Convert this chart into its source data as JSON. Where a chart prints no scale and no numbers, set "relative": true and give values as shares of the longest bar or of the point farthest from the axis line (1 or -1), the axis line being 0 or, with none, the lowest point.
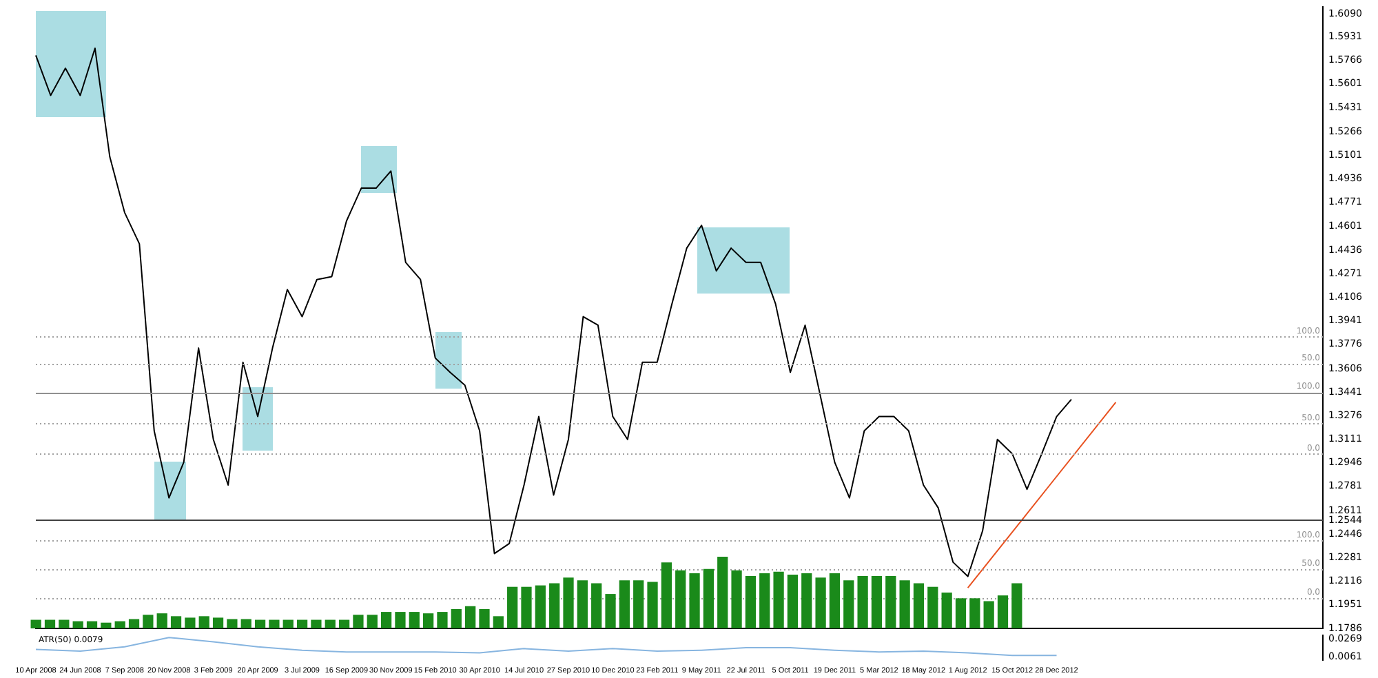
{
  "chart_data": [
    {
      "type": "line",
      "grid": false,
      "categories": [
        "10 Apr 2008",
        null,
        null,
        "24 Jun 2008",
        null,
        null,
        "7 Sep 2008",
        null,
        null,
        "20 Nov 2008",
        null,
        null,
        "3 Feb 2009",
        null,
        null,
        "20 Apr 2009",
        null,
        null,
        "3 Jul 2009",
        null,
        null,
        "16 Sep 2009",
        null,
        null,
        "30 Nov 2009",
        null,
        null,
        "15 Feb 2010",
        null,
        null,
        "30 Apr 2010",
        null,
        null,
        "14 Jul 2010",
        null,
        null,
        "27 Sep 2010",
        null,
        null,
        "10 Dec 2010",
        null,
        null,
        "23 Feb 2011",
        null,
        null,
        "9 May 2011",
        null,
        null,
        "22 Jul 2011",
        null,
        null,
        "5 Oct 2011",
        null,
        null,
        "19 Dec 2011",
        null,
        null,
        "5 Mar 2012",
        null,
        null,
        "18 May 2012",
        null,
        null,
        "1 Aug 2012",
        null,
        null,
        "15 Oct 2012",
        null,
        null,
        "28 Dec 2012",
        null,
        null,
        null,
        null,
        null,
        null,
        null,
        null,
        null,
        null,
        null,
        null,
        null,
        null,
        null,
        null,
        null,
        null
      ],
      "ylim": [
        1.1786,
        1.6138
      ],
      "yticks": [
        {
          "value": 1.1786,
          "label": "1.1786"
        },
        {
          "value": 1.1951,
          "label": "1.1951"
        },
        {
          "value": 1.2116,
          "label": "1.2116"
        },
        {
          "value": 1.2281,
          "label": "1.2281"
        },
        {
          "value": 1.2446,
          "label": "1.2446"
        },
        {
          "value": 1.2544,
          "label": "1.2544"
        },
        {
          "value": 1.2611,
          "label": "1.2611"
        },
        {
          "value": 1.2781,
          "label": "1.2781"
        },
        {
          "value": 1.2946,
          "label": "1.2946"
        },
        {
          "value": 1.3111,
          "label": "1.3111"
        },
        {
          "value": 1.3276,
          "label": "1.3276"
        },
        {
          "value": 1.3441,
          "label": "1.3441"
        },
        {
          "value": 1.3606,
          "label": "1.3606"
        },
        {
          "value": 1.3776,
          "label": "1.3776"
        },
        {
          "value": 1.3941,
          "label": "1.3941"
        },
        {
          "value": 1.4106,
          "label": "1.4106"
        },
        {
          "value": 1.4271,
          "label": "1.4271"
        },
        {
          "value": 1.4436,
          "label": "1.4436"
        },
        {
          "value": 1.4601,
          "label": "1.4601"
        },
        {
          "value": 1.4771,
          "label": "1.4771"
        },
        {
          "value": 1.4936,
          "label": "1.4936"
        },
        {
          "value": 1.5101,
          "label": "1.5101"
        },
        {
          "value": 1.5266,
          "label": "1.5266"
        },
        {
          "value": 1.5431,
          "label": "1.5431"
        },
        {
          "value": 1.5601,
          "label": "1.5601"
        },
        {
          "value": 1.5766,
          "label": "1.5766"
        },
        {
          "value": 1.5931,
          "label": "1.5931"
        },
        {
          "value": 1.609,
          "label": "1.6090"
        }
      ],
      "series": [
        {
          "type": "line",
          "color": "#000000",
          "values": [
            1.58,
            1.552,
            1.571,
            1.552,
            1.585,
            1.509,
            1.47,
            1.448,
            1.317,
            1.27,
            1.295,
            1.375,
            1.311,
            1.279,
            1.365,
            1.327,
            1.375,
            1.416,
            1.397,
            1.423,
            1.425,
            1.464,
            1.487,
            1.487,
            1.499,
            1.435,
            1.423,
            1.368,
            1.358,
            1.349,
            1.317,
            1.231,
            1.238,
            1.279,
            1.327,
            1.272,
            1.311,
            1.397,
            1.391,
            1.327,
            1.311,
            1.365,
            1.365,
            1.406,
            1.445,
            1.461,
            1.429,
            1.445,
            1.435,
            1.435,
            1.406,
            1.358,
            1.391,
            1.343,
            1.295,
            1.27,
            1.317,
            1.327,
            1.327,
            1.317,
            1.279,
            1.263,
            1.225,
            1.215,
            1.247,
            1.311,
            1.301,
            1.276,
            1.301,
            1.327,
            1.339,
            null,
            null,
            null,
            null,
            null,
            null,
            null,
            null,
            null,
            null,
            null,
            null,
            null,
            null,
            null,
            null,
            null
          ]
        },
        {
          "type": "line",
          "color": "#e8501e",
          "values": [
            null,
            null,
            null,
            null,
            null,
            null,
            null,
            null,
            null,
            null,
            null,
            null,
            null,
            null,
            null,
            null,
            null,
            null,
            null,
            null,
            null,
            null,
            null,
            null,
            null,
            null,
            null,
            null,
            null,
            null,
            null,
            null,
            null,
            null,
            null,
            null,
            null,
            null,
            null,
            null,
            null,
            null,
            null,
            null,
            null,
            null,
            null,
            null,
            null,
            null,
            null,
            null,
            null,
            null,
            null,
            null,
            null,
            null,
            null,
            null,
            null,
            null,
            null,
            1.207,
            null,
            null,
            null,
            null,
            null,
            null,
            null,
            null,
            null,
            1.337,
            null,
            null,
            null,
            null,
            null,
            null,
            null,
            null,
            null,
            null,
            null,
            null,
            null,
            null
          ]
        }
      ],
      "ref_lines": [
        {
          "axis": "y",
          "value": 1.383,
          "color": "#a0a0a0",
          "line_style": "dotted"
        },
        {
          "axis": "y",
          "value": 1.364,
          "color": "#a0a0a0",
          "line_style": "dotted"
        },
        {
          "axis": "y",
          "value": 1.3441,
          "color": "#909090",
          "line_style": "solid"
        },
        {
          "axis": "y",
          "value": 1.322,
          "color": "#a0a0a0",
          "line_style": "dotted"
        },
        {
          "axis": "y",
          "value": 1.301,
          "color": "#a0a0a0",
          "line_style": "dotted"
        },
        {
          "axis": "y",
          "value": 1.2544,
          "color": "#404040",
          "line_style": "solid"
        },
        {
          "axis": "y",
          "value": 1.24,
          "color": "#a0a0a0",
          "line_style": "dotted"
        },
        {
          "axis": "y",
          "value": 1.22,
          "color": "#a0a0a0",
          "line_style": "dotted"
        },
        {
          "axis": "y",
          "value": 1.2,
          "color": "#a0a0a0",
          "line_style": "dotted"
        }
      ],
      "annotations": [
        {
          "text": "100.0",
          "y": 1.383
        },
        {
          "text": "50.0",
          "y": 1.364
        },
        {
          "text": "100.0",
          "y": 1.3441
        },
        {
          "text": "50.0",
          "y": 1.322
        },
        {
          "text": "0.0",
          "y": 1.301
        },
        {
          "text": "100.0",
          "y": 1.24
        },
        {
          "text": "50.0",
          "y": 1.22
        },
        {
          "text": "0.0",
          "y": 1.2
        }
      ]
    },
    {
      "type": "bar",
      "relative": true,
      "tick_labels": false,
      "grid": false,
      "categories": [
        null,
        null,
        null,
        null,
        null,
        null,
        null,
        null,
        null,
        null,
        null,
        null,
        null,
        null,
        null,
        null,
        null,
        null,
        null,
        null,
        null,
        null,
        null,
        null,
        null,
        null,
        null,
        null,
        null,
        null,
        null,
        null,
        null,
        null,
        null,
        null,
        null,
        null,
        null,
        null,
        null,
        null,
        null,
        null,
        null,
        null,
        null,
        null,
        null,
        null,
        null,
        null,
        null,
        null,
        null,
        null,
        null,
        null,
        null,
        null,
        null,
        null,
        null,
        null,
        null,
        null,
        null,
        null,
        null,
        null,
        null
      ],
      "color": "#1a8a1a",
      "values": [
        0.12,
        0.12,
        0.12,
        0.1,
        0.1,
        0.08,
        0.1,
        0.13,
        0.19,
        0.21,
        0.17,
        0.15,
        0.17,
        0.15,
        0.13,
        0.13,
        0.12,
        0.12,
        0.12,
        0.12,
        0.12,
        0.12,
        0.12,
        0.19,
        0.19,
        0.23,
        0.23,
        0.23,
        0.21,
        0.23,
        0.27,
        0.31,
        0.27,
        0.17,
        0.58,
        0.58,
        0.6,
        0.63,
        0.71,
        0.67,
        0.63,
        0.48,
        0.67,
        0.67,
        0.65,
        0.92,
        0.81,
        0.77,
        0.83,
        1,
        0.81,
        0.73,
        0.77,
        0.79,
        0.75,
        0.77,
        0.71,
        0.77,
        0.67,
        0.73,
        0.73,
        0.73,
        0.67,
        0.63,
        0.58,
        0.5,
        0.42,
        0.42,
        0.38,
        0.46,
        0.63
      ]
    },
    {
      "type": "line",
      "grid": false,
      "tick_labels": "y",
      "annotations": [
        "ATR(50) 0.0079"
      ],
      "categories": [
        null,
        null,
        null,
        null,
        null,
        null,
        null,
        null,
        null,
        null,
        null,
        null,
        null,
        null,
        null,
        null,
        null,
        null,
        null,
        null,
        null,
        null,
        null,
        null,
        null,
        null,
        null,
        null,
        null,
        null,
        null,
        null,
        null,
        null,
        null,
        null,
        null,
        null,
        null,
        null,
        null,
        null,
        null,
        null,
        null,
        null,
        null,
        null,
        null,
        null,
        null,
        null,
        null,
        null,
        null,
        null,
        null,
        null,
        null,
        null,
        null,
        null,
        null,
        null,
        null,
        null,
        null,
        null,
        null,
        null,
        null,
        null,
        null,
        null,
        null,
        null,
        null,
        null,
        null,
        null,
        null,
        null,
        null,
        null,
        null,
        null,
        null,
        null
      ],
      "ylim": [
        0.0028,
        0.0313
      ],
      "yticks": [
        0.0061,
        0.0269
      ],
      "color": "#87b5e0",
      "values": [
        0.015,
        null,
        null,
        0.013,
        null,
        null,
        0.018,
        null,
        null,
        0.029,
        null,
        null,
        0.024,
        null,
        null,
        0.018,
        null,
        null,
        0.014,
        null,
        null,
        0.012,
        null,
        null,
        0.012,
        null,
        null,
        0.012,
        null,
        null,
        0.011,
        null,
        null,
        0.016,
        null,
        null,
        0.013,
        null,
        null,
        0.016,
        null,
        null,
        0.013,
        null,
        null,
        0.014,
        null,
        null,
        0.017,
        null,
        null,
        0.017,
        null,
        null,
        0.014,
        null,
        null,
        0.012,
        null,
        null,
        0.013,
        null,
        null,
        0.011,
        null,
        null,
        0.008,
        null,
        null,
        0.008,
        null,
        null,
        null,
        null,
        null,
        null,
        null,
        null,
        null,
        null,
        null,
        null,
        null,
        null,
        null,
        null,
        null,
        null
      ]
    }
  ]
}
